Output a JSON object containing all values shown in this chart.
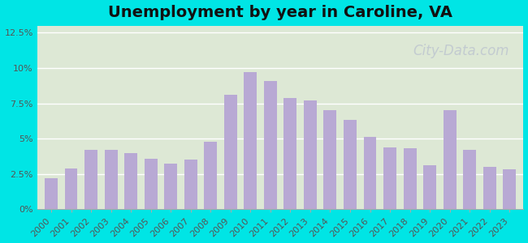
{
  "title": "Unemployment by year in Caroline, VA",
  "years": [
    2000,
    2001,
    2002,
    2003,
    2004,
    2005,
    2006,
    2007,
    2008,
    2009,
    2010,
    2011,
    2012,
    2013,
    2014,
    2015,
    2016,
    2017,
    2018,
    2019,
    2020,
    2021,
    2022,
    2023
  ],
  "values": [
    2.2,
    2.9,
    4.2,
    4.2,
    4.0,
    3.6,
    3.2,
    3.5,
    4.8,
    8.1,
    9.7,
    9.1,
    7.9,
    7.7,
    7.0,
    6.3,
    5.1,
    4.4,
    4.3,
    3.1,
    7.0,
    4.2,
    3.0,
    2.8
  ],
  "bar_color": "#b8a9d4",
  "background_outer": "#00e5e5",
  "background_plot": "#dde8d5",
  "ylim": [
    0,
    13
  ],
  "yticks": [
    0,
    2.5,
    5.0,
    7.5,
    10.0,
    12.5
  ],
  "ytick_labels": [
    "0%",
    "2.5%",
    "5%",
    "7.5%",
    "10%",
    "12.5%"
  ],
  "title_fontsize": 14,
  "tick_fontsize": 8,
  "watermark": "City-Data.com",
  "watermark_color": "#c0c8d0",
  "watermark_fontsize": 12
}
